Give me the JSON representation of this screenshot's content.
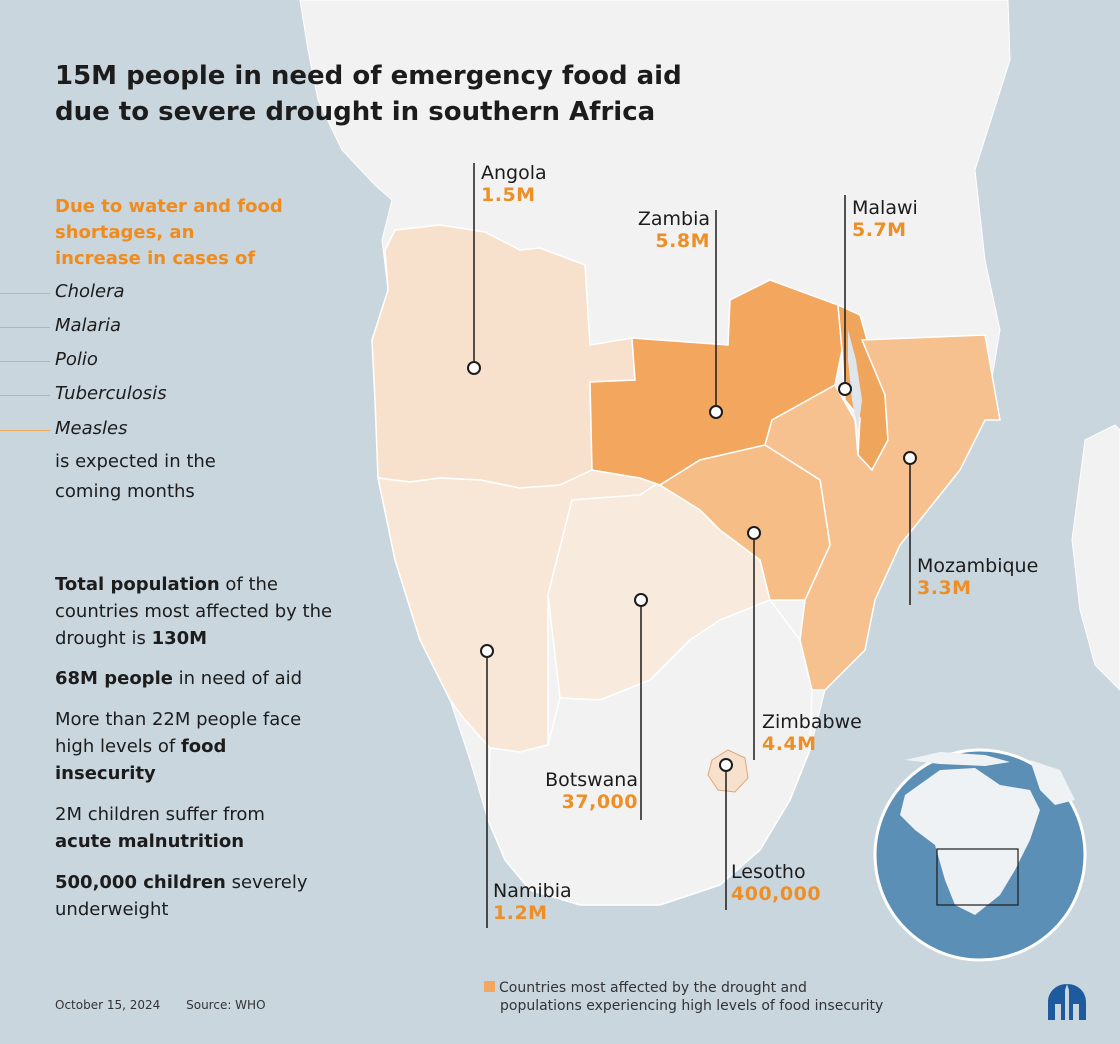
{
  "title": {
    "line1": "15M people in need of emergency food aid",
    "line2": "due to severe drought in southern Africa"
  },
  "health": {
    "intro_line1": "Due to water and food",
    "intro_line2": "shortages, an",
    "intro_line3": "increase in cases of",
    "diseases": [
      "Cholera",
      "Malaria",
      "Polio",
      "Tuberculosis",
      "Measles"
    ],
    "outro_line1": "is expected in the",
    "outro_line2": "coming months"
  },
  "stats": {
    "s1_bold": "Total population",
    "s1_text": " of the countries most affected by the drought is ",
    "s1_value": "130M",
    "s2_bold": "68M people",
    "s2_text": " in need of aid",
    "s3_text": "More than 22M people face high levels of ",
    "s3_bold": "food insecurity",
    "s4_text": "2M children suffer from ",
    "s4_bold": "acute malnutrition",
    "s5_bold": "500,000 children",
    "s5_text": " severely underweight"
  },
  "countries": [
    {
      "name": "Angola",
      "value": "1.5M",
      "level": "light"
    },
    {
      "name": "Zambia",
      "value": "5.8M",
      "level": "high"
    },
    {
      "name": "Malawi",
      "value": "5.7M",
      "level": "high"
    },
    {
      "name": "Mozambique",
      "value": "3.3M",
      "level": "medium"
    },
    {
      "name": "Zimbabwe",
      "value": "4.4M",
      "level": "medium"
    },
    {
      "name": "Botswana",
      "value": "37,000",
      "level": "light"
    },
    {
      "name": "Namibia",
      "value": "1.2M",
      "level": "light"
    },
    {
      "name": "Lesotho",
      "value": "400,000",
      "level": "light"
    }
  ],
  "legend": {
    "line1": "Countries most affected by the drought and",
    "line2": "populations experiencing high levels of food insecurity"
  },
  "footer": {
    "date": "October 15, 2024",
    "source": "Source: WHO"
  },
  "colors": {
    "accent": "#ee8f26",
    "high": "#f3a65d",
    "medium": "#f6c18f",
    "light": "#f7e1cc",
    "ocean": "#c9d6de",
    "land": "#f2f2f2"
  }
}
